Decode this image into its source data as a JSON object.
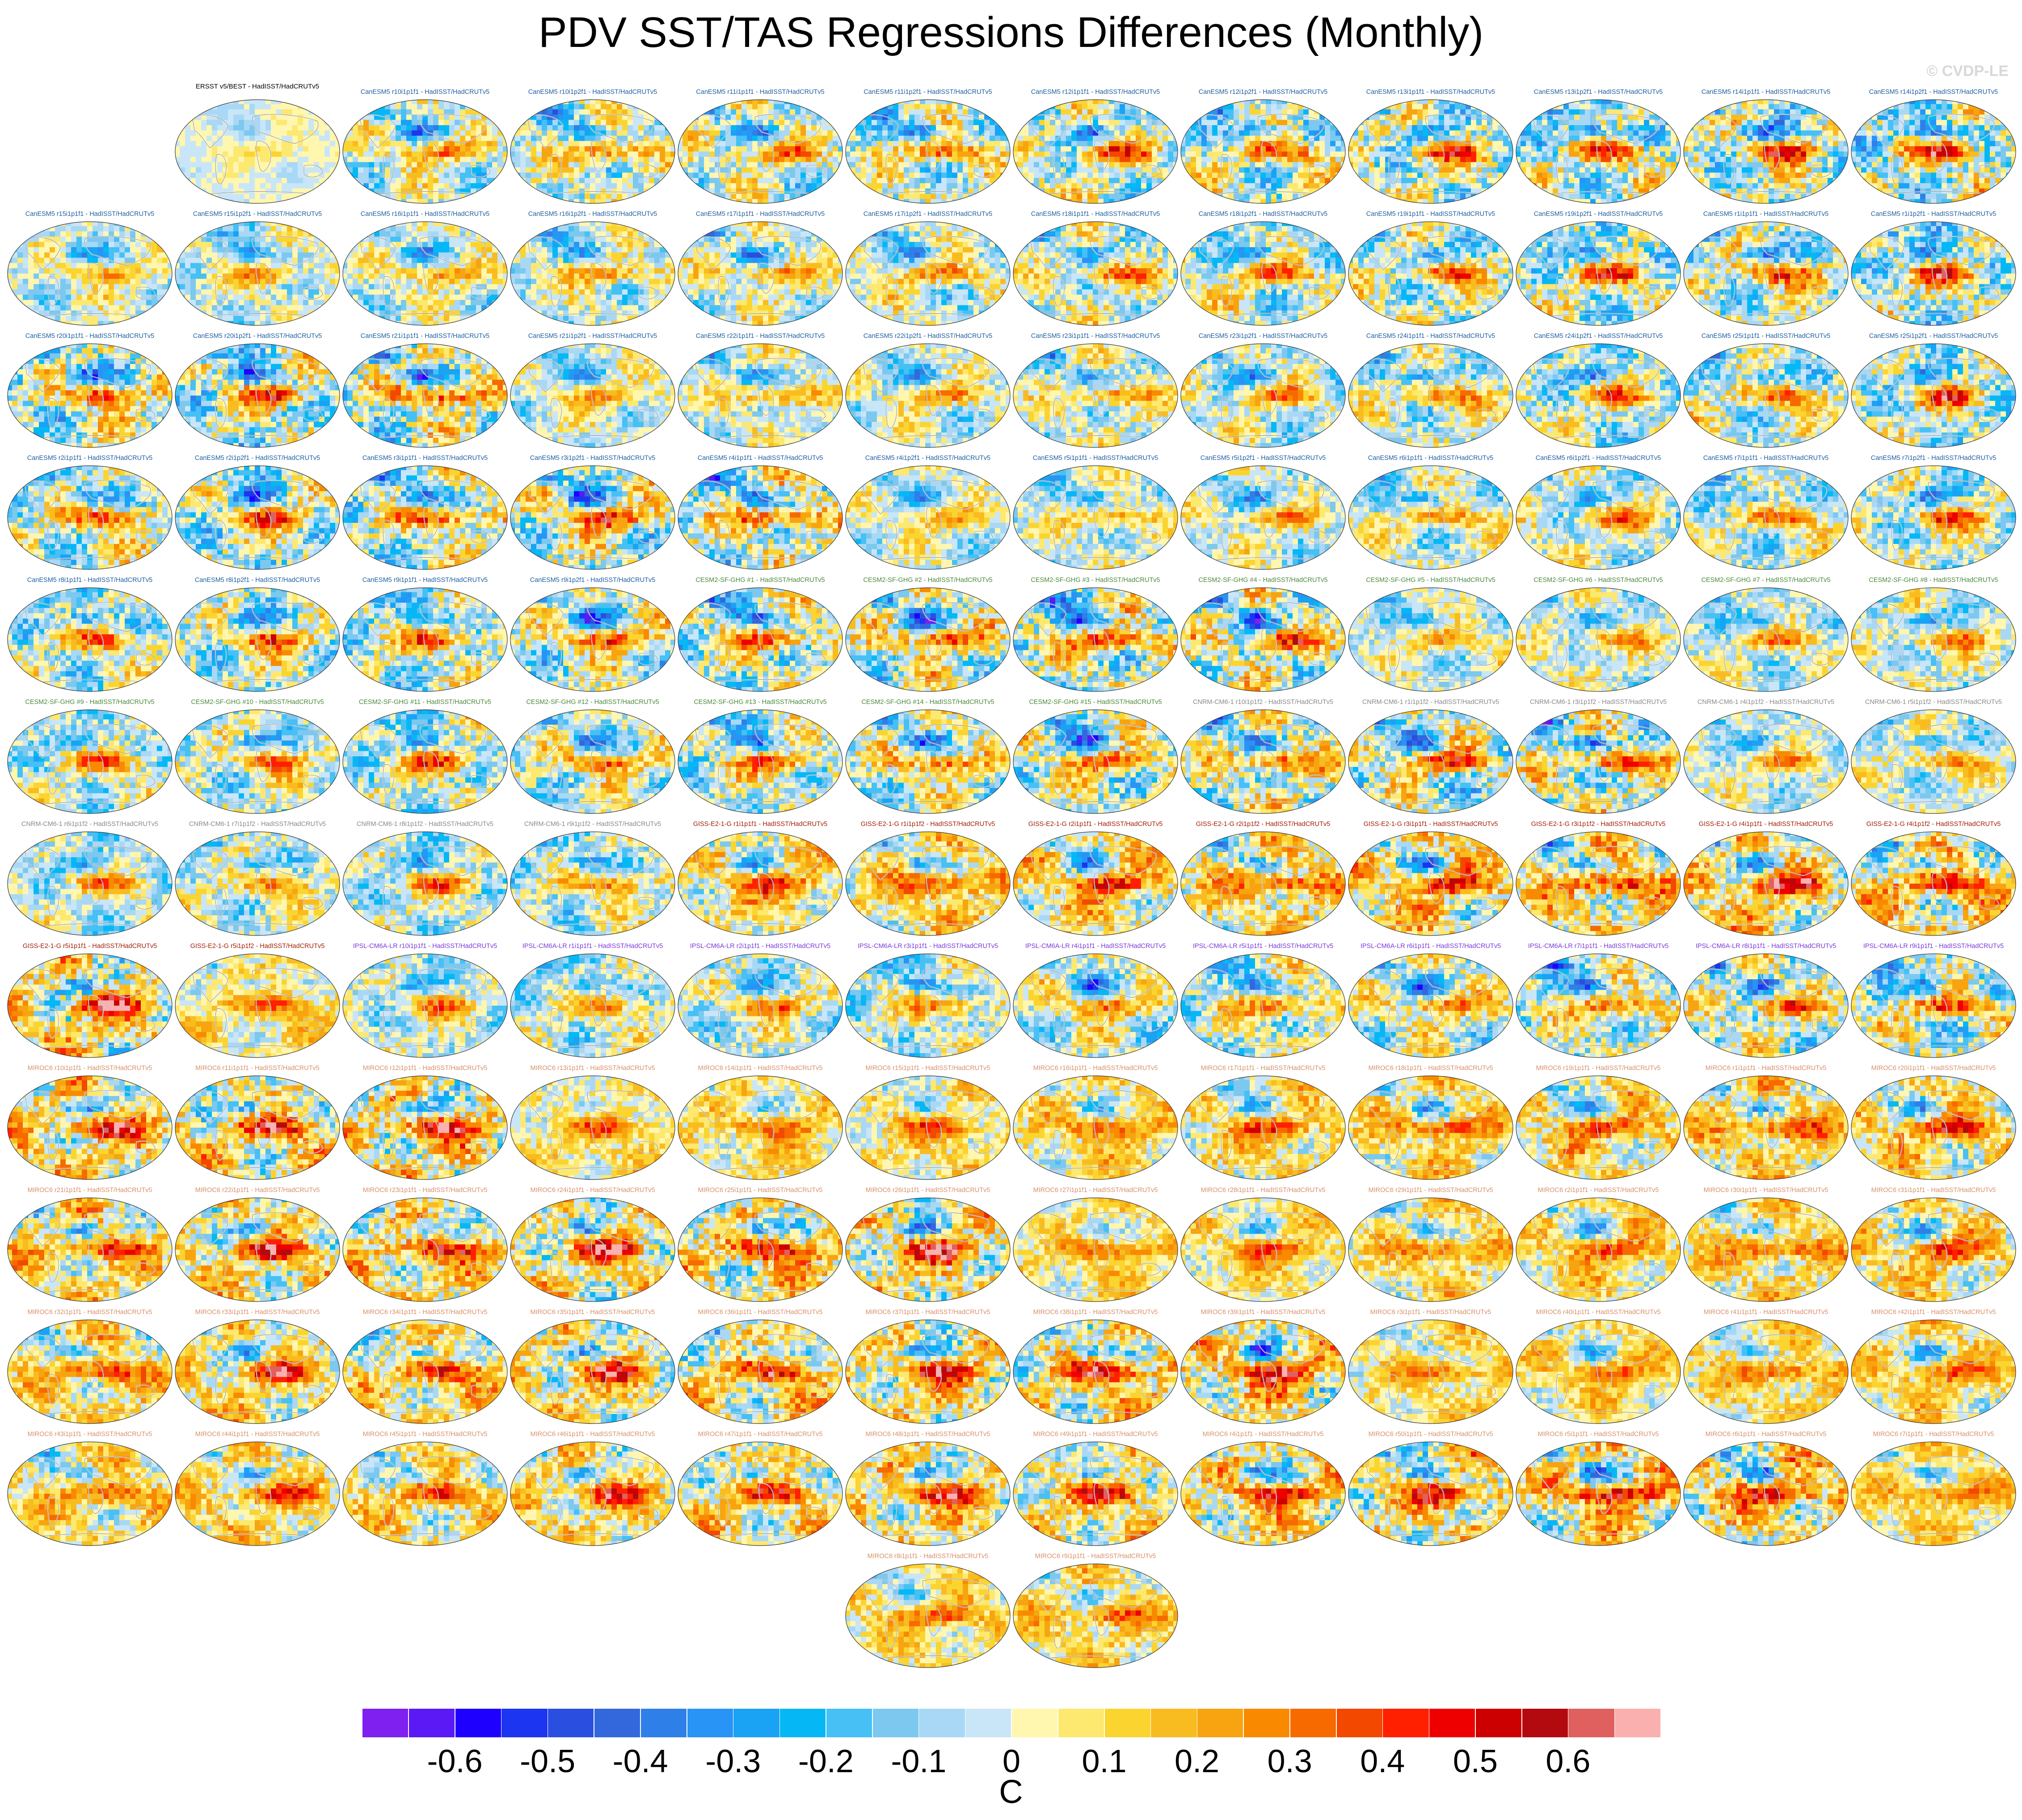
{
  "title": "PDV SST/TAS Regressions Differences (Monthly)",
  "watermark": "© CVDP-LE",
  "units": "C",
  "palette_colors": {
    "canesm5": "#1f5fa0",
    "cesm2": "#4a8a3a",
    "cnrm": "#8a8a8a",
    "giss": "#a0200a",
    "ipsl": "#7a3ad8",
    "miroc6": "#d8906a",
    "obs": "#000000"
  },
  "chart_data": {
    "type": "heatmap",
    "description_units": "C",
    "colorbar": {
      "levels": [
        -0.65,
        -0.6,
        -0.55,
        -0.5,
        -0.45,
        -0.4,
        -0.35,
        -0.3,
        -0.25,
        -0.2,
        -0.15,
        -0.1,
        -0.05,
        0,
        0.05,
        0.1,
        0.15,
        0.2,
        0.25,
        0.3,
        0.35,
        0.4,
        0.45,
        0.5,
        0.55,
        0.6,
        0.65
      ],
      "colors": [
        "#7f1ff0",
        "#5a19f5",
        "#1e00ff",
        "#1c35f0",
        "#2a4fe0",
        "#3368dc",
        "#2f7fe8",
        "#2894f5",
        "#1aa2f5",
        "#05b8f5",
        "#46c0f5",
        "#7cc8ef",
        "#a8d8f5",
        "#c8e6f7",
        "#fff6b0",
        "#fde870",
        "#fbd430",
        "#f9bc20",
        "#f7a410",
        "#f98a00",
        "#f76a00",
        "#f34800",
        "#ff2000",
        "#ee0000",
        "#cc0000",
        "#b30a10",
        "#e06060",
        "#fbb0b0"
      ],
      "tick_labels": [
        "-0.6",
        "-0.5",
        "-0.4",
        "-0.3",
        "-0.2",
        "-0.1",
        "0",
        "0.1",
        "0.2",
        "0.3",
        "0.4",
        "0.5",
        "0.6"
      ]
    },
    "panels": [
      {
        "title": "ERSST v5/BEST - HadISST/HadCRUTv5",
        "group": "obs"
      },
      {
        "title": "CanESM5 r10i1p1f1 - HadISST/HadCRUTv5",
        "group": "canesm5"
      },
      {
        "title": "CanESM5 r10i1p2f1 - HadISST/HadCRUTv5",
        "group": "canesm5"
      },
      {
        "title": "CanESM5 r11i1p1f1 - HadISST/HadCRUTv5",
        "group": "canesm5"
      },
      {
        "title": "CanESM5 r11i1p2f1 - HadISST/HadCRUTv5",
        "group": "canesm5"
      },
      {
        "title": "CanESM5 r12i1p1f1 - HadISST/HadCRUTv5",
        "group": "canesm5"
      },
      {
        "title": "CanESM5 r12i1p2f1 - HadISST/HadCRUTv5",
        "group": "canesm5"
      },
      {
        "title": "CanESM5 r13i1p1f1 - HadISST/HadCRUTv5",
        "group": "canesm5"
      },
      {
        "title": "CanESM5 r13i1p2f1 - HadISST/HadCRUTv5",
        "group": "canesm5"
      },
      {
        "title": "CanESM5 r14i1p1f1 - HadISST/HadCRUTv5",
        "group": "canesm5"
      },
      {
        "title": "CanESM5 r14i1p2f1 - HadISST/HadCRUTv5",
        "group": "canesm5"
      },
      {
        "title": "CanESM5 r15i1p1f1 - HadISST/HadCRUTv5",
        "group": "canesm5"
      },
      {
        "title": "CanESM5 r15i1p2f1 - HadISST/HadCRUTv5",
        "group": "canesm5"
      },
      {
        "title": "CanESM5 r16i1p1f1 - HadISST/HadCRUTv5",
        "group": "canesm5"
      },
      {
        "title": "CanESM5 r16i1p2f1 - HadISST/HadCRUTv5",
        "group": "canesm5"
      },
      {
        "title": "CanESM5 r17i1p1f1 - HadISST/HadCRUTv5",
        "group": "canesm5"
      },
      {
        "title": "CanESM5 r17i1p2f1 - HadISST/HadCRUTv5",
        "group": "canesm5"
      },
      {
        "title": "CanESM5 r18i1p1f1 - HadISST/HadCRUTv5",
        "group": "canesm5"
      },
      {
        "title": "CanESM5 r18i1p2f1 - HadISST/HadCRUTv5",
        "group": "canesm5"
      },
      {
        "title": "CanESM5 r19i1p1f1 - HadISST/HadCRUTv5",
        "group": "canesm5"
      },
      {
        "title": "CanESM5 r19i1p2f1 - HadISST/HadCRUTv5",
        "group": "canesm5"
      },
      {
        "title": "CanESM5 r1i1p1f1 - HadISST/HadCRUTv5",
        "group": "canesm5"
      },
      {
        "title": "CanESM5 r1i1p2f1 - HadISST/HadCRUTv5",
        "group": "canesm5"
      },
      {
        "title": "CanESM5 r20i1p1f1 - HadISST/HadCRUTv5",
        "group": "canesm5"
      },
      {
        "title": "CanESM5 r20i1p2f1 - HadISST/HadCRUTv5",
        "group": "canesm5"
      },
      {
        "title": "CanESM5 r21i1p1f1 - HadISST/HadCRUTv5",
        "group": "canesm5"
      },
      {
        "title": "CanESM5 r21i1p2f1 - HadISST/HadCRUTv5",
        "group": "canesm5"
      },
      {
        "title": "CanESM5 r22i1p1f1 - HadISST/HadCRUTv5",
        "group": "canesm5"
      },
      {
        "title": "CanESM5 r22i1p2f1 - HadISST/HadCRUTv5",
        "group": "canesm5"
      },
      {
        "title": "CanESM5 r23i1p1f1 - HadISST/HadCRUTv5",
        "group": "canesm5"
      },
      {
        "title": "CanESM5 r23i1p2f1 - HadISST/HadCRUTv5",
        "group": "canesm5"
      },
      {
        "title": "CanESM5 r24i1p1f1 - HadISST/HadCRUTv5",
        "group": "canesm5"
      },
      {
        "title": "CanESM5 r24i1p2f1 - HadISST/HadCRUTv5",
        "group": "canesm5"
      },
      {
        "title": "CanESM5 r25i1p1f1 - HadISST/HadCRUTv5",
        "group": "canesm5"
      },
      {
        "title": "CanESM5 r25i1p2f1 - HadISST/HadCRUTv5",
        "group": "canesm5"
      },
      {
        "title": "CanESM5 r2i1p1f1 - HadISST/HadCRUTv5",
        "group": "canesm5"
      },
      {
        "title": "CanESM5 r2i1p2f1 - HadISST/HadCRUTv5",
        "group": "canesm5"
      },
      {
        "title": "CanESM5 r3i1p1f1 - HadISST/HadCRUTv5",
        "group": "canesm5"
      },
      {
        "title": "CanESM5 r3i1p2f1 - HadISST/HadCRUTv5",
        "group": "canesm5"
      },
      {
        "title": "CanESM5 r4i1p1f1 - HadISST/HadCRUTv5",
        "group": "canesm5"
      },
      {
        "title": "CanESM5 r4i1p2f1 - HadISST/HadCRUTv5",
        "group": "canesm5"
      },
      {
        "title": "CanESM5 r5i1p1f1 - HadISST/HadCRUTv5",
        "group": "canesm5"
      },
      {
        "title": "CanESM5 r5i1p2f1 - HadISST/HadCRUTv5",
        "group": "canesm5"
      },
      {
        "title": "CanESM5 r6i1p1f1 - HadISST/HadCRUTv5",
        "group": "canesm5"
      },
      {
        "title": "CanESM5 r6i1p2f1 - HadISST/HadCRUTv5",
        "group": "canesm5"
      },
      {
        "title": "CanESM5 r7i1p1f1 - HadISST/HadCRUTv5",
        "group": "canesm5"
      },
      {
        "title": "CanESM5 r7i1p2f1 - HadISST/HadCRUTv5",
        "group": "canesm5"
      },
      {
        "title": "CanESM5 r8i1p1f1 - HadISST/HadCRUTv5",
        "group": "canesm5"
      },
      {
        "title": "CanESM5 r8i1p2f1 - HadISST/HadCRUTv5",
        "group": "canesm5"
      },
      {
        "title": "CanESM5 r9i1p1f1 - HadISST/HadCRUTv5",
        "group": "canesm5"
      },
      {
        "title": "CanESM5 r9i1p2f1 - HadISST/HadCRUTv5",
        "group": "canesm5"
      },
      {
        "title": "CESM2-SF-GHG #1 - HadISST/HadCRUTv5",
        "group": "cesm2"
      },
      {
        "title": "CESM2-SF-GHG #2 - HadISST/HadCRUTv5",
        "group": "cesm2"
      },
      {
        "title": "CESM2-SF-GHG #3 - HadISST/HadCRUTv5",
        "group": "cesm2"
      },
      {
        "title": "CESM2-SF-GHG #4 - HadISST/HadCRUTv5",
        "group": "cesm2"
      },
      {
        "title": "CESM2-SF-GHG #5 - HadISST/HadCRUTv5",
        "group": "cesm2"
      },
      {
        "title": "CESM2-SF-GHG #6 - HadISST/HadCRUTv5",
        "group": "cesm2"
      },
      {
        "title": "CESM2-SF-GHG #7 - HadISST/HadCRUTv5",
        "group": "cesm2"
      },
      {
        "title": "CESM2-SF-GHG #8 - HadISST/HadCRUTv5",
        "group": "cesm2"
      },
      {
        "title": "CESM2-SF-GHG #9 - HadISST/HadCRUTv5",
        "group": "cesm2"
      },
      {
        "title": "CESM2-SF-GHG #10 - HadISST/HadCRUTv5",
        "group": "cesm2"
      },
      {
        "title": "CESM2-SF-GHG #11 - HadISST/HadCRUTv5",
        "group": "cesm2"
      },
      {
        "title": "CESM2-SF-GHG #12 - HadISST/HadCRUTv5",
        "group": "cesm2"
      },
      {
        "title": "CESM2-SF-GHG #13 - HadISST/HadCRUTv5",
        "group": "cesm2"
      },
      {
        "title": "CESM2-SF-GHG #14 - HadISST/HadCRUTv5",
        "group": "cesm2"
      },
      {
        "title": "CESM2-SF-GHG #15 - HadISST/HadCRUTv5",
        "group": "cesm2"
      },
      {
        "title": "CNRM-CM6-1 r10i1p1f2 - HadISST/HadCRUTv5",
        "group": "cnrm"
      },
      {
        "title": "CNRM-CM6-1 r1i1p1f2 - HadISST/HadCRUTv5",
        "group": "cnrm"
      },
      {
        "title": "CNRM-CM6-1 r3i1p1f2 - HadISST/HadCRUTv5",
        "group": "cnrm"
      },
      {
        "title": "CNRM-CM6-1 r4i1p1f2 - HadISST/HadCRUTv5",
        "group": "cnrm"
      },
      {
        "title": "CNRM-CM6-1 r5i1p1f2 - HadISST/HadCRUTv5",
        "group": "cnrm"
      },
      {
        "title": "CNRM-CM6-1 r6i1p1f2 - HadISST/HadCRUTv5",
        "group": "cnrm"
      },
      {
        "title": "CNRM-CM6-1 r7i1p1f2 - HadISST/HadCRUTv5",
        "group": "cnrm"
      },
      {
        "title": "CNRM-CM6-1 r8i1p1f2 - HadISST/HadCRUTv5",
        "group": "cnrm"
      },
      {
        "title": "CNRM-CM6-1 r9i1p1f2 - HadISST/HadCRUTv5",
        "group": "cnrm"
      },
      {
        "title": "GISS-E2-1-G r1i1p1f1 - HadISST/HadCRUTv5",
        "group": "giss"
      },
      {
        "title": "GISS-E2-1-G r1i1p1f2 - HadISST/HadCRUTv5",
        "group": "giss"
      },
      {
        "title": "GISS-E2-1-G r2i1p1f1 - HadISST/HadCRUTv5",
        "group": "giss"
      },
      {
        "title": "GISS-E2-1-G r2i1p1f2 - HadISST/HadCRUTv5",
        "group": "giss"
      },
      {
        "title": "GISS-E2-1-G r3i1p1f1 - HadISST/HadCRUTv5",
        "group": "giss"
      },
      {
        "title": "GISS-E2-1-G r3i1p1f2 - HadISST/HadCRUTv5",
        "group": "giss"
      },
      {
        "title": "GISS-E2-1-G r4i1p1f1 - HadISST/HadCRUTv5",
        "group": "giss"
      },
      {
        "title": "GISS-E2-1-G r4i1p1f2 - HadISST/HadCRUTv5",
        "group": "giss"
      },
      {
        "title": "GISS-E2-1-G r5i1p1f1 - HadISST/HadCRUTv5",
        "group": "giss"
      },
      {
        "title": "GISS-E2-1-G r5i1p1f2 - HadISST/HadCRUTv5",
        "group": "giss"
      },
      {
        "title": "IPSL-CM6A-LR r10i1p1f1 - HadISST/HadCRUTv5",
        "group": "ipsl"
      },
      {
        "title": "IPSL-CM6A-LR r1i1p1f1 - HadISST/HadCRUTv5",
        "group": "ipsl"
      },
      {
        "title": "IPSL-CM6A-LR r2i1p1f1 - HadISST/HadCRUTv5",
        "group": "ipsl"
      },
      {
        "title": "IPSL-CM6A-LR r3i1p1f1 - HadISST/HadCRUTv5",
        "group": "ipsl"
      },
      {
        "title": "IPSL-CM6A-LR r4i1p1f1 - HadISST/HadCRUTv5",
        "group": "ipsl"
      },
      {
        "title": "IPSL-CM6A-LR r5i1p1f1 - HadISST/HadCRUTv5",
        "group": "ipsl"
      },
      {
        "title": "IPSL-CM6A-LR r6i1p1f1 - HadISST/HadCRUTv5",
        "group": "ipsl"
      },
      {
        "title": "IPSL-CM6A-LR r7i1p1f1 - HadISST/HadCRUTv5",
        "group": "ipsl"
      },
      {
        "title": "IPSL-CM6A-LR r8i1p1f1 - HadISST/HadCRUTv5",
        "group": "ipsl"
      },
      {
        "title": "IPSL-CM6A-LR r9i1p1f1 - HadISST/HadCRUTv5",
        "group": "ipsl"
      },
      {
        "title": "MIROC6 r10i1p1f1 - HadISST/HadCRUTv5",
        "group": "miroc6"
      },
      {
        "title": "MIROC6 r11i1p1f1 - HadISST/HadCRUTv5",
        "group": "miroc6"
      },
      {
        "title": "MIROC6 r12i1p1f1 - HadISST/HadCRUTv5",
        "group": "miroc6"
      },
      {
        "title": "MIROC6 r13i1p1f1 - HadISST/HadCRUTv5",
        "group": "miroc6"
      },
      {
        "title": "MIROC6 r14i1p1f1 - HadISST/HadCRUTv5",
        "group": "miroc6"
      },
      {
        "title": "MIROC6 r15i1p1f1 - HadISST/HadCRUTv5",
        "group": "miroc6"
      },
      {
        "title": "MIROC6 r16i1p1f1 - HadISST/HadCRUTv5",
        "group": "miroc6"
      },
      {
        "title": "MIROC6 r17i1p1f1 - HadISST/HadCRUTv5",
        "group": "miroc6"
      },
      {
        "title": "MIROC6 r18i1p1f1 - HadISST/HadCRUTv5",
        "group": "miroc6"
      },
      {
        "title": "MIROC6 r19i1p1f1 - HadISST/HadCRUTv5",
        "group": "miroc6"
      },
      {
        "title": "MIROC6 r1i1p1f1 - HadISST/HadCRUTv5",
        "group": "miroc6"
      },
      {
        "title": "MIROC6 r20i1p1f1 - HadISST/HadCRUTv5",
        "group": "miroc6"
      },
      {
        "title": "MIROC6 r21i1p1f1 - HadISST/HadCRUTv5",
        "group": "miroc6"
      },
      {
        "title": "MIROC6 r22i1p1f1 - HadISST/HadCRUTv5",
        "group": "miroc6"
      },
      {
        "title": "MIROC6 r23i1p1f1 - HadISST/HadCRUTv5",
        "group": "miroc6"
      },
      {
        "title": "MIROC6 r24i1p1f1 - HadISST/HadCRUTv5",
        "group": "miroc6"
      },
      {
        "title": "MIROC6 r25i1p1f1 - HadISST/HadCRUTv5",
        "group": "miroc6"
      },
      {
        "title": "MIROC6 r26i1p1f1 - HadISST/HadCRUTv5",
        "group": "miroc6"
      },
      {
        "title": "MIROC6 r27i1p1f1 - HadISST/HadCRUTv5",
        "group": "miroc6"
      },
      {
        "title": "MIROC6 r28i1p1f1 - HadISST/HadCRUTv5",
        "group": "miroc6"
      },
      {
        "title": "MIROC6 r29i1p1f1 - HadISST/HadCRUTv5",
        "group": "miroc6"
      },
      {
        "title": "MIROC6 r2i1p1f1 - HadISST/HadCRUTv5",
        "group": "miroc6"
      },
      {
        "title": "MIROC6 r30i1p1f1 - HadISST/HadCRUTv5",
        "group": "miroc6"
      },
      {
        "title": "MIROC6 r31i1p1f1 - HadISST/HadCRUTv5",
        "group": "miroc6"
      },
      {
        "title": "MIROC6 r32i1p1f1 - HadISST/HadCRUTv5",
        "group": "miroc6"
      },
      {
        "title": "MIROC6 r33i1p1f1 - HadISST/HadCRUTv5",
        "group": "miroc6"
      },
      {
        "title": "MIROC6 r34i1p1f1 - HadISST/HadCRUTv5",
        "group": "miroc6"
      },
      {
        "title": "MIROC6 r35i1p1f1 - HadISST/HadCRUTv5",
        "group": "miroc6"
      },
      {
        "title": "MIROC6 r36i1p1f1 - HadISST/HadCRUTv5",
        "group": "miroc6"
      },
      {
        "title": "MIROC6 r37i1p1f1 - HadISST/HadCRUTv5",
        "group": "miroc6"
      },
      {
        "title": "MIROC6 r38i1p1f1 - HadISST/HadCRUTv5",
        "group": "miroc6"
      },
      {
        "title": "MIROC6 r39i1p1f1 - HadISST/HadCRUTv5",
        "group": "miroc6"
      },
      {
        "title": "MIROC6 r3i1p1f1 - HadISST/HadCRUTv5",
        "group": "miroc6"
      },
      {
        "title": "MIROC6 r40i1p1f1 - HadISST/HadCRUTv5",
        "group": "miroc6"
      },
      {
        "title": "MIROC6 r41i1p1f1 - HadISST/HadCRUTv5",
        "group": "miroc6"
      },
      {
        "title": "MIROC6 r42i1p1f1 - HadISST/HadCRUTv5",
        "group": "miroc6"
      },
      {
        "title": "MIROC6 r43i1p1f1 - HadISST/HadCRUTv5",
        "group": "miroc6"
      },
      {
        "title": "MIROC6 r44i1p1f1 - HadISST/HadCRUTv5",
        "group": "miroc6"
      },
      {
        "title": "MIROC6 r45i1p1f1 - HadISST/HadCRUTv5",
        "group": "miroc6"
      },
      {
        "title": "MIROC6 r46i1p1f1 - HadISST/HadCRUTv5",
        "group": "miroc6"
      },
      {
        "title": "MIROC6 r47i1p1f1 - HadISST/HadCRUTv5",
        "group": "miroc6"
      },
      {
        "title": "MIROC6 r48i1p1f1 - HadISST/HadCRUTv5",
        "group": "miroc6"
      },
      {
        "title": "MIROC6 r49i1p1f1 - HadISST/HadCRUTv5",
        "group": "miroc6"
      },
      {
        "title": "MIROC6 r4i1p1f1 - HadISST/HadCRUTv5",
        "group": "miroc6"
      },
      {
        "title": "MIROC6 r50i1p1f1 - HadISST/HadCRUTv5",
        "group": "miroc6"
      },
      {
        "title": "MIROC6 r5i1p1f1 - HadISST/HadCRUTv5",
        "group": "miroc6"
      },
      {
        "title": "MIROC6 r6i1p1f1 - HadISST/HadCRUTv5",
        "group": "miroc6"
      },
      {
        "title": "MIROC6 r7i1p1f1 - HadISST/HadCRUTv5",
        "group": "miroc6"
      },
      {
        "title": "MIROC6 r8i1p1f1 - HadISST/HadCRUTv5",
        "group": "miroc6"
      },
      {
        "title": "MIROC6 r9i1p1f1 - HadISST/HadCRUTv5",
        "group": "miroc6"
      }
    ]
  }
}
